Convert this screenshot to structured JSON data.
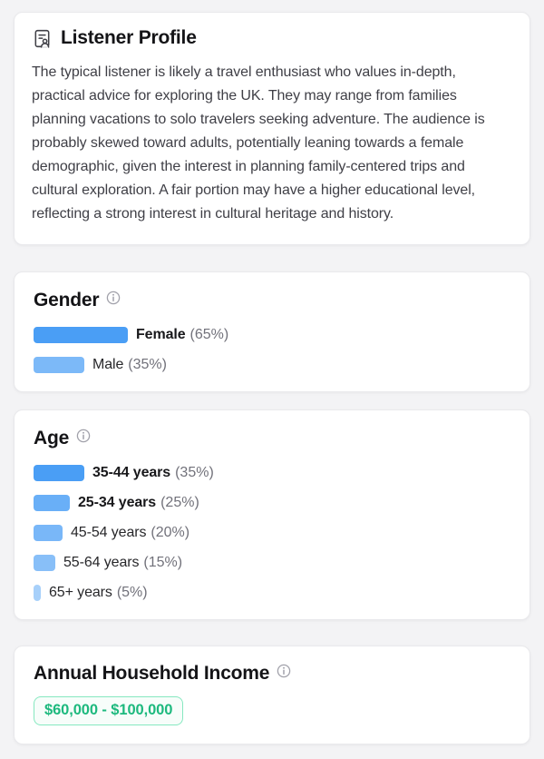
{
  "profile_card": {
    "title": "Listener Profile",
    "description": "The typical listener is likely a travel enthusiast who values in-depth, practical advice for exploring the UK. They may range from families planning vacations to solo travelers seeking adventure. The audience is probably skewed toward adults, potentially leaning towards a female demographic, given the interest in planning family-centered trips and cultural exploration. A fair portion may have a higher educational level, reflecting a strong interest in cultural heritage and history."
  },
  "gender_card": {
    "title": "Gender",
    "max_pct": 65,
    "bars": [
      {
        "label": "Female",
        "pct": 65,
        "pct_text": "(65%)",
        "bold": true
      },
      {
        "label": "Male",
        "pct": 35,
        "pct_text": "(35%)",
        "bold": false
      }
    ]
  },
  "age_card": {
    "title": "Age",
    "max_pct": 35,
    "bars": [
      {
        "label": "35-44 years",
        "pct": 35,
        "pct_text": "(35%)",
        "bold": true
      },
      {
        "label": "25-34 years",
        "pct": 25,
        "pct_text": "(25%)",
        "bold": true
      },
      {
        "label": "45-54 years",
        "pct": 20,
        "pct_text": "(20%)",
        "bold": false
      },
      {
        "label": "55-64 years",
        "pct": 15,
        "pct_text": "(15%)",
        "bold": false
      },
      {
        "label": "65+ years",
        "pct": 5,
        "pct_text": "(5%)",
        "bold": false
      }
    ]
  },
  "income_card": {
    "title": "Annual Household Income",
    "badge_label": "$60,000 - $100,000"
  },
  "icons": {
    "profile": "id-card-icon",
    "info": "info-icon"
  },
  "colors": {
    "bar_blue": "#4A9EF5",
    "badge_text_green": "#1DB97E",
    "badge_border_green": "#86E8C0",
    "badge_bg_green": "#F7FDFA",
    "muted_gray": "#71717A",
    "page_bg": "#F3F3F5"
  },
  "chart_data": [
    {
      "type": "bar",
      "title": "Gender",
      "categories": [
        "Female",
        "Male"
      ],
      "values": [
        65,
        35
      ],
      "unit": "%",
      "orientation": "horizontal",
      "xlim": [
        0,
        100
      ]
    },
    {
      "type": "bar",
      "title": "Age",
      "categories": [
        "35-44 years",
        "25-34 years",
        "45-54 years",
        "55-64 years",
        "65+ years"
      ],
      "values": [
        35,
        25,
        20,
        15,
        5
      ],
      "unit": "%",
      "orientation": "horizontal",
      "xlim": [
        0,
        100
      ]
    }
  ]
}
